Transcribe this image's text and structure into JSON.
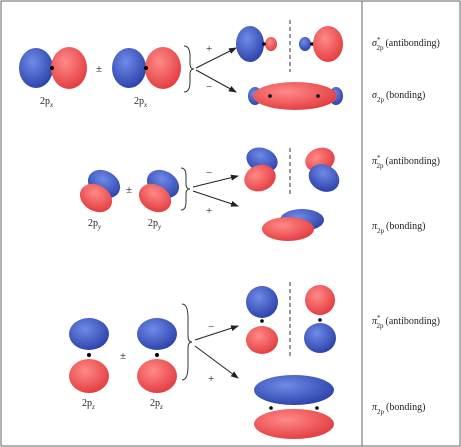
{
  "rows": [
    {
      "ao_left": {
        "base": "2p",
        "sub": "x"
      },
      "ao_right": {
        "base": "2p",
        "sub": "x"
      },
      "combine": "±",
      "sign_up": "+",
      "sign_down": "−",
      "mo_up": {
        "symbol": "σ",
        "sup": "*",
        "sub": "2p",
        "kind": "(antibonding)"
      },
      "mo_down": {
        "symbol": "σ",
        "sub": "2p",
        "kind": "(bonding)"
      }
    },
    {
      "ao_left": {
        "base": "2p",
        "sub": "y"
      },
      "ao_right": {
        "base": "2p",
        "sub": "y"
      },
      "combine": "±",
      "sign_up": "−",
      "sign_down": "+",
      "mo_up": {
        "symbol": "π",
        "sup": "*",
        "sub": "2p",
        "kind": "(antibonding)"
      },
      "mo_down": {
        "symbol": "π",
        "sub": "2p",
        "kind": "(bonding)"
      }
    },
    {
      "ao_left": {
        "base": "2p",
        "sub": "z"
      },
      "ao_right": {
        "base": "2p",
        "sub": "z"
      },
      "combine": "±",
      "sign_up": "−",
      "sign_down": "+",
      "mo_up": {
        "symbol": "π",
        "sup": "*",
        "sub": "2p",
        "kind": "(antibonding)"
      },
      "mo_down": {
        "symbol": "π",
        "sub": "2p",
        "kind": "(bonding)"
      }
    }
  ]
}
